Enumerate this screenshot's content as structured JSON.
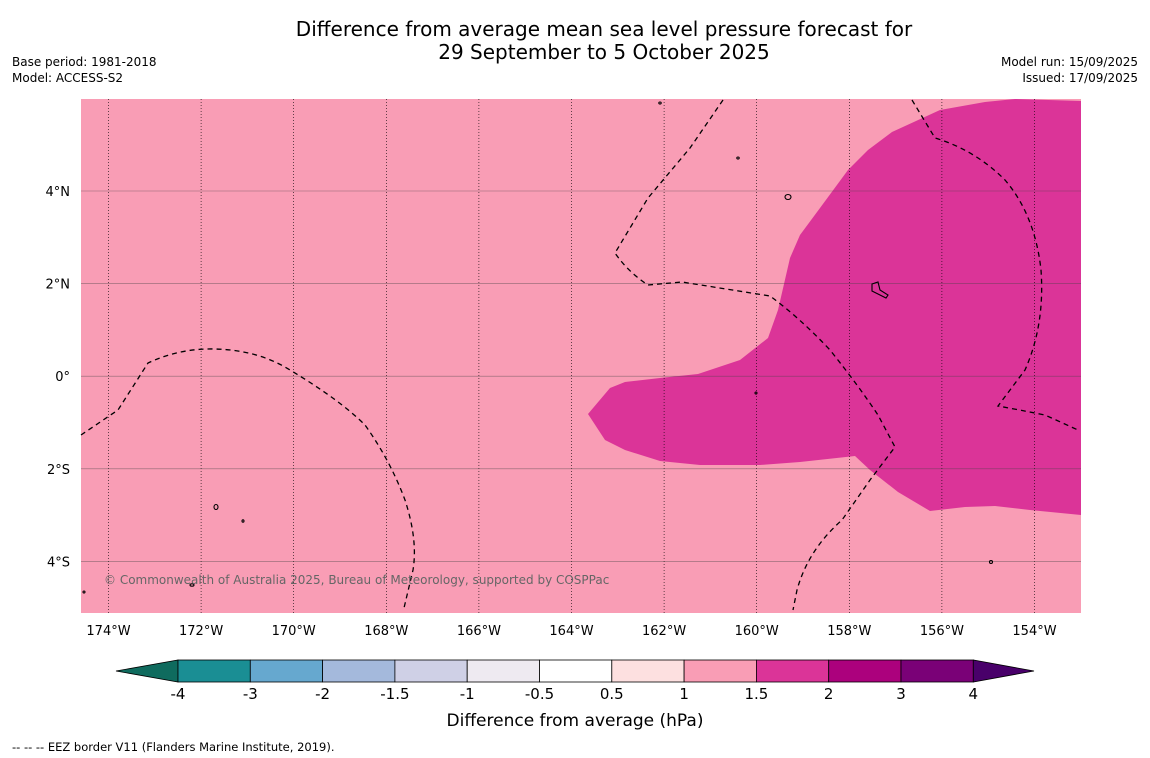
{
  "title_line1": "Difference from average mean sea level pressure forecast for",
  "title_line2": "29 September to 5 October 2025",
  "left_meta": {
    "base_period": "Base period: 1981-2018",
    "model": "Model: ACCESS-S2"
  },
  "right_meta": {
    "model_run": "Model run: 15/09/2025",
    "issued": "Issued: 17/09/2025"
  },
  "copyright": "© Commonwealth of Australia 2025, Bureau of Meteorology, supported by COSPPac",
  "lon_labels": [
    "174°W",
    "172°W",
    "170°W",
    "168°W",
    "166°W",
    "164°W",
    "162°W",
    "160°W",
    "158°W",
    "156°W",
    "154°W"
  ],
  "lat_labels": [
    "4°N",
    "2°N",
    "0°",
    "2°S",
    "4°S"
  ],
  "colorbar": {
    "title": "Difference from average (hPa)",
    "labels": [
      "-4",
      "-3",
      "-2",
      "-1.5",
      "-1",
      "-0.5",
      "0.5",
      "1",
      "1.5",
      "2",
      "3",
      "4"
    ],
    "colors": [
      "#0f6b5e",
      "#1a8e94",
      "#66a8cf",
      "#a4b9dc",
      "#cfd0e6",
      "#eeeaf1",
      "#ffffff",
      "#fde0e0",
      "#f99db5",
      "#db3498",
      "#ac017d",
      "#7a0177",
      "#49006a"
    ]
  },
  "map_colors": {
    "background": "#f99db5",
    "positive": "#db3498"
  },
  "footnote": "--  --  -- EEZ border V11 (Flanders Marine Institute, 2019)."
}
